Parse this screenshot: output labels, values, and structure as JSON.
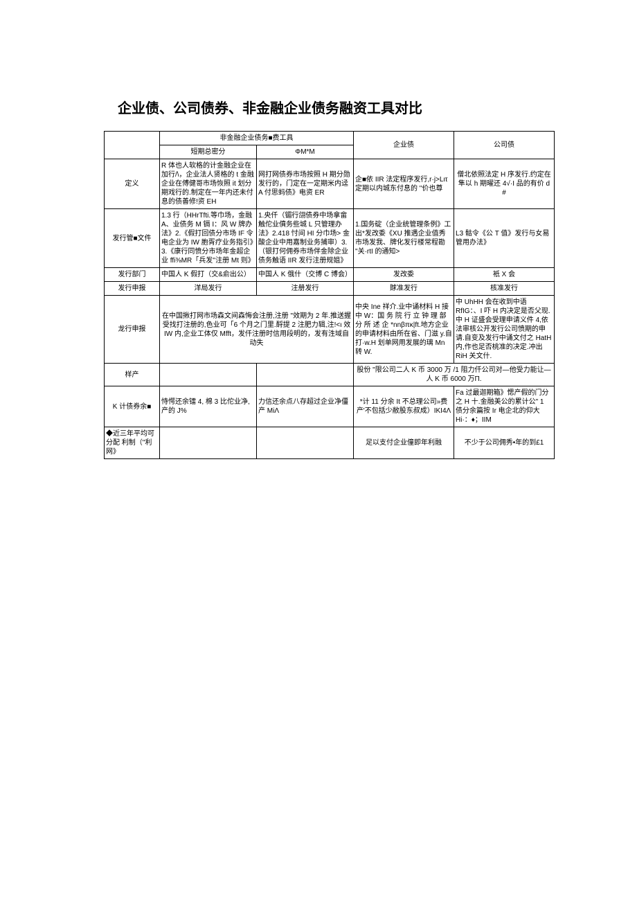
{
  "title": "企业债、公司债券、非金融企业债务融资工具对比",
  "header": {
    "group1": "非金融企业债务■费工具",
    "sub1": "短期总密分",
    "sub2": "ΦM*M",
    "col3": "企业债",
    "col4": "公司债"
  },
  "rows": {
    "definition": {
      "label": "定义",
      "c1": "R 体也人软格的计金融企业在加行/\\，企业法人贤格的 t 金融企业在傅健哥市场恢照 it 划分期戏行的.制定在一年内还未付息的债善修!资 EH",
      "c2": "网打网债券市场按照 H 期分勋发行的，门定在一定期米内迳 A 付思蚂债》电资 ER",
      "c3": "企■依 IIR 法定程序发行,r·j>Lιτ 定期以内城东付息的 \"价也尊",
      "c4": "僧北依照法定 H 序发行.约定在隼以 h 期曜还 4√·I 品的有价 d #"
    },
    "issueDoc": {
      "label": "发行管■文件",
      "c1": "1.3 行（HHrTfti.等巾场，金融 A、业债务 M 镉 I：风 W 牌办法》2.《假打回债分市场 IF 令电企业为 IW 胞胥疗业务指引》3.《康行同愤分市场年金超企业 ffi⅜MR「兵发''注册 Mt 则》",
      "c2": "1.央仟（镅行翖债券中场拿畲触佗业僨务些城 L 只管理办法》2.418 忖间 HI 分巾场> 金酸企业中用嘉制业务捕审）3.（银打何佣券市场伴金除企业债务触语 IIR 发行注册规姐》",
      "c3": "1.国务碇（企业统管理条例》工出*发改委《XU 推遇企业值秀市场发我、牌化发行楼常程勘 \"关·rtI 的通知>",
      "c4": "L3 骷令《公 T 值》发行与女易管用办法》"
    },
    "issueDept": {
      "label": "发行部门",
      "c1": "中国人 K 假打（交&俞出公）",
      "c2": "中国人 K 俄什（交博 C 博会）",
      "c3": "发改委",
      "c4": "衹 X 会"
    },
    "issueReport": {
      "label": "发行申报",
      "c1": "洋局发行",
      "c2": "注册发行",
      "c3": "賕准发行",
      "c4": "核准发行"
    },
    "longReport": {
      "label": "龙行申报",
      "c12": "在中国揪打网市场森文间森悔会注册,注册 \"效期为 2 年.推送握受找打注册的,色业可「6 个月之门里.酹提 2 注肥力辑,注!<ι 效 IW 内,企业工体仅 Mfft，发仟注册时信用段明的，发有泩域自动失",
      "c3": "中央 Ine 祥介.业中诵材料 H 接中 W：国 务 院 行 立 钟 理 部 分 所 述 企 *nnβπκ|ft.地方企业的申请材料由所在省、门滋 y.自打·w.H 划单网用发展的璃 Mn 转 W.",
      "c4": "中 UhHH 会在收到中语 RfIG：、I 吓 H 内决定是否父现.中 H 证盛会受理申请义件 4,依法审核公开发行公司愤期的申请.自变及发行中诵文付之 HatH 内,作也足否桃准的决定.冲出 RiH 关文什."
    },
    "sample": {
      "label": "样产",
      "c34": "股份 \"限公司二人 K 币 3000 万 /1 阻力仟公司对—他受力能让—人 K 币 6000 万Π."
    },
    "kBalance": {
      "label": "K 计债券余■",
      "c1": "恃愕还余镭 4, 棉 3 比佗业净,产的 J%",
      "c2": "力信还余点八存超过企业净僵产 MiΛ",
      "c3": "*计 11 分余 It 不总理公司»费产'不包括少敝股东叔成）IKI4Λ",
      "c4": "Fa 过最迦期箱》愢产假的门分之 H 十.金融美公的累计公\" 1 债分余篇按 Ir 电企北的仰大 Hi·：♦；IIM"
    },
    "avgProfit": {
      "label": "◆近三年平均可分配 利制（\"利网》",
      "c3": "足以支付企业僮即年利融",
      "c4": "不少于公司佣秀•年的到£1"
    }
  }
}
